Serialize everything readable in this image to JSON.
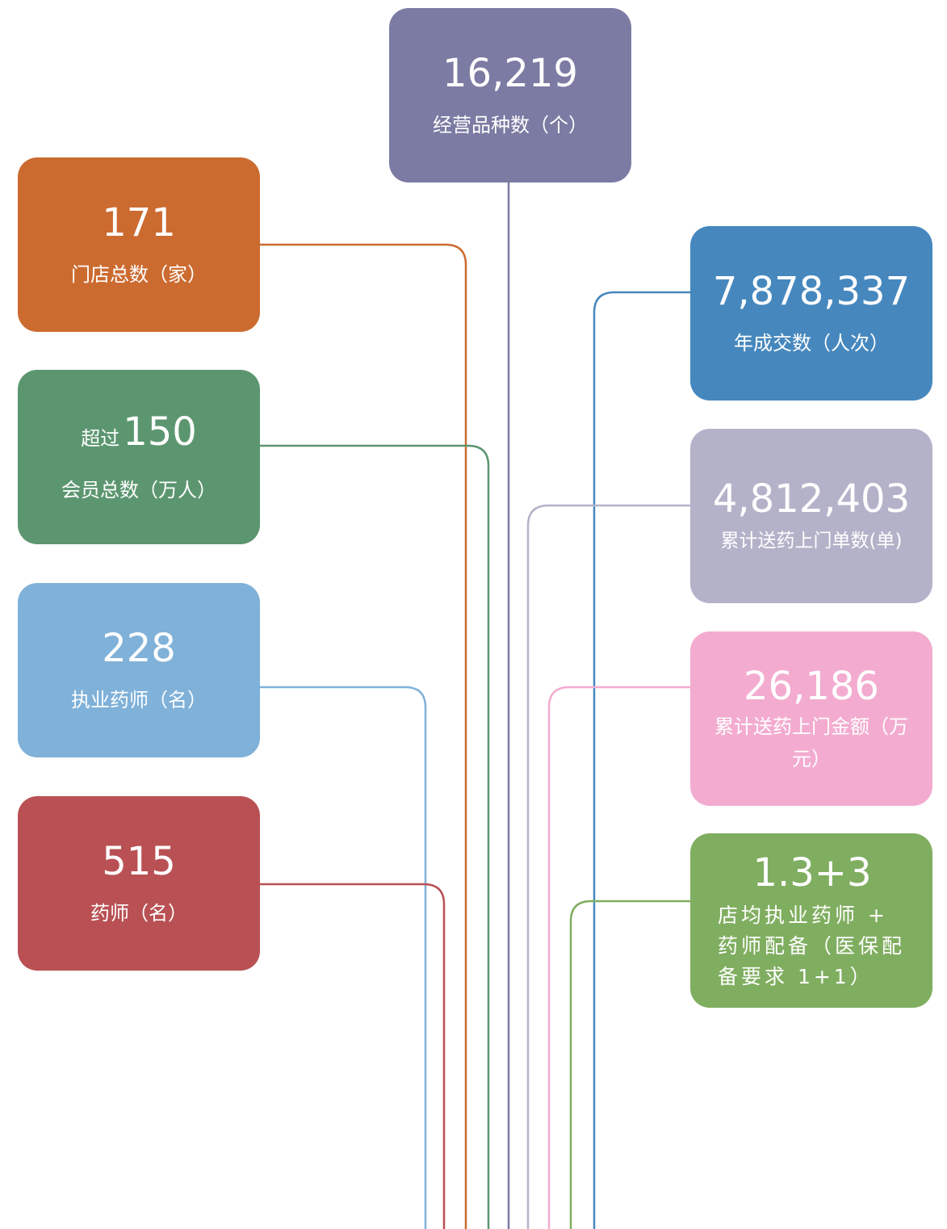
{
  "top": {
    "value": "16,219",
    "label": "经营品种数（个）"
  },
  "left": [
    {
      "value": "171",
      "label": "门店总数（家）"
    },
    {
      "prefix": "超过",
      "value": "150",
      "label": "会员总数（万人）"
    },
    {
      "value": "228",
      "label": "执业药师（名）"
    },
    {
      "value": "515",
      "label": "药师（名）"
    }
  ],
  "right": [
    {
      "value": "7,878,337",
      "label": "年成交数（人次）"
    },
    {
      "value": "4,812,403",
      "label": "累计送药上门单数(单)"
    },
    {
      "value": "26,186",
      "label": "累计送药上门金额（万元）"
    },
    {
      "value": "1.3+3",
      "label": "店均执业药师 + 药师配备（医保配备要求 1+1）"
    }
  ]
}
